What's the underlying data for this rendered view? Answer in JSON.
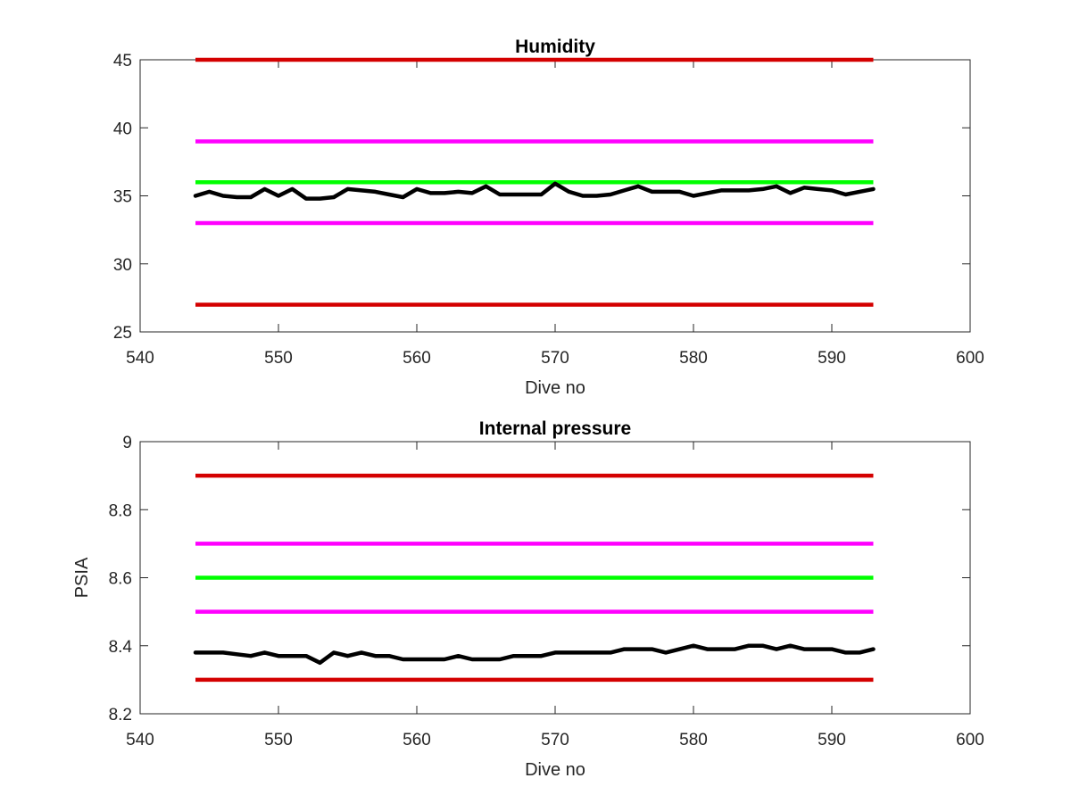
{
  "chart_data": [
    {
      "type": "line",
      "title": "Humidity",
      "xlabel": "Dive no",
      "ylabel": "",
      "xlim": [
        540,
        600
      ],
      "ylim": [
        25,
        45
      ],
      "xticks": [
        540,
        550,
        560,
        570,
        580,
        590,
        600
      ],
      "yticks": [
        25,
        30,
        35,
        40,
        45
      ],
      "xtick_labels": [
        "540",
        "550",
        "560",
        "570",
        "580",
        "590",
        "600"
      ],
      "ytick_labels": [
        "25",
        "30",
        "35",
        "40",
        "45"
      ],
      "grid": false,
      "x": [
        544,
        545,
        546,
        547,
        548,
        549,
        550,
        551,
        552,
        553,
        554,
        555,
        556,
        557,
        558,
        559,
        560,
        561,
        562,
        563,
        564,
        565,
        566,
        567,
        568,
        569,
        570,
        571,
        572,
        573,
        574,
        575,
        576,
        577,
        578,
        579,
        580,
        581,
        582,
        583,
        584,
        585,
        586,
        587,
        588,
        589,
        590,
        591,
        592,
        593
      ],
      "series": [
        {
          "color": "#000000",
          "values": [
            35.0,
            35.3,
            35.0,
            34.9,
            34.9,
            35.5,
            35.0,
            35.5,
            34.8,
            34.8,
            34.9,
            35.5,
            35.4,
            35.3,
            35.1,
            34.9,
            35.5,
            35.2,
            35.2,
            35.3,
            35.2,
            35.7,
            35.1,
            35.1,
            35.1,
            35.1,
            35.9,
            35.3,
            35.0,
            35.0,
            35.1,
            35.4,
            35.7,
            35.3,
            35.3,
            35.3,
            35.0,
            35.2,
            35.4,
            35.4,
            35.4,
            35.5,
            35.7,
            35.2,
            35.6,
            35.5,
            35.4,
            35.1,
            35.3,
            35.5
          ]
        }
      ],
      "threshold_lines": [
        {
          "color": "#d40000",
          "value": 45,
          "x": [
            544,
            593
          ]
        },
        {
          "color": "#ff00ff",
          "value": 39,
          "x": [
            544,
            593
          ]
        },
        {
          "color": "#00ff00",
          "value": 36,
          "x": [
            544,
            593
          ]
        },
        {
          "color": "#ff00ff",
          "value": 33,
          "x": [
            544,
            593
          ]
        },
        {
          "color": "#d40000",
          "value": 27,
          "x": [
            544,
            593
          ]
        }
      ]
    },
    {
      "type": "line",
      "title": "Internal pressure",
      "xlabel": "Dive no",
      "ylabel": "PSIA",
      "xlim": [
        540,
        600
      ],
      "ylim": [
        8.2,
        9
      ],
      "xticks": [
        540,
        550,
        560,
        570,
        580,
        590,
        600
      ],
      "yticks": [
        8.2,
        8.4,
        8.6,
        8.8,
        9
      ],
      "xtick_labels": [
        "540",
        "550",
        "560",
        "570",
        "580",
        "590",
        "600"
      ],
      "ytick_labels": [
        "8.2",
        "8.4",
        "8.6",
        "8.8",
        "9"
      ],
      "grid": false,
      "x": [
        544,
        545,
        546,
        547,
        548,
        549,
        550,
        551,
        552,
        553,
        554,
        555,
        556,
        557,
        558,
        559,
        560,
        561,
        562,
        563,
        564,
        565,
        566,
        567,
        568,
        569,
        570,
        571,
        572,
        573,
        574,
        575,
        576,
        577,
        578,
        579,
        580,
        581,
        582,
        583,
        584,
        585,
        586,
        587,
        588,
        589,
        590,
        591,
        592,
        593
      ],
      "series": [
        {
          "color": "#000000",
          "values": [
            8.38,
            8.38,
            8.38,
            8.375,
            8.37,
            8.38,
            8.37,
            8.37,
            8.37,
            8.35,
            8.38,
            8.37,
            8.38,
            8.37,
            8.37,
            8.36,
            8.36,
            8.36,
            8.36,
            8.37,
            8.36,
            8.36,
            8.36,
            8.37,
            8.37,
            8.37,
            8.38,
            8.38,
            8.38,
            8.38,
            8.38,
            8.39,
            8.39,
            8.39,
            8.38,
            8.39,
            8.4,
            8.39,
            8.39,
            8.39,
            8.4,
            8.4,
            8.39,
            8.4,
            8.39,
            8.39,
            8.39,
            8.38,
            8.38,
            8.39
          ]
        }
      ],
      "threshold_lines": [
        {
          "color": "#d40000",
          "value": 8.9,
          "x": [
            544,
            593
          ]
        },
        {
          "color": "#ff00ff",
          "value": 8.7,
          "x": [
            544,
            593
          ]
        },
        {
          "color": "#00ff00",
          "value": 8.6,
          "x": [
            544,
            593
          ]
        },
        {
          "color": "#ff00ff",
          "value": 8.5,
          "x": [
            544,
            593
          ]
        },
        {
          "color": "#d40000",
          "value": 8.3,
          "x": [
            544,
            593
          ]
        }
      ]
    }
  ]
}
